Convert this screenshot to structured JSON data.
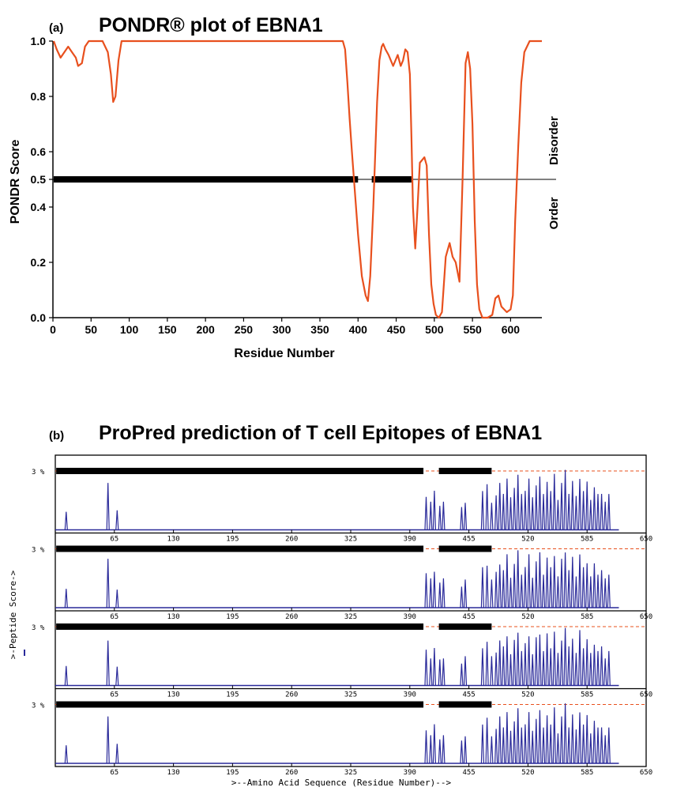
{
  "panel_a": {
    "letter": "(a)",
    "title": "PONDR® plot of EBNA1",
    "ylabel": "PONDR Score",
    "xlabel": "Residue Number",
    "disorder_label": "Disorder",
    "order_label": "Order"
  },
  "panel_b": {
    "letter": "(b)",
    "title": "ProPred prediction of T cell Epitopes of EBNA1",
    "ylabel": ">-Peptide Score->",
    "xlabel": ">--Amino Acid Sequence (Residue Number)-->",
    "threshold_label": "3 %"
  },
  "colors": {
    "pondr_line": "#e8501e",
    "propred_line": "#2a2a9a",
    "threshold": "#e8501e",
    "bar": "#000000"
  },
  "chart_data": [
    {
      "type": "line",
      "title": "PONDR® plot of EBNA1",
      "xlabel": "Residue Number",
      "ylabel": "PONDR Score",
      "xlim": [
        0,
        641
      ],
      "ylim": [
        0,
        1.0
      ],
      "xticks": [
        0,
        50,
        100,
        150,
        200,
        250,
        300,
        350,
        400,
        450,
        500,
        550,
        600
      ],
      "yticks": [
        0.0,
        0.2,
        0.4,
        0.5,
        0.6,
        0.8,
        1.0
      ],
      "threshold": 0.5,
      "ordered_segments": [
        [
          1,
          400
        ],
        [
          418,
          470
        ]
      ],
      "series": [
        {
          "x": [
            1,
            5,
            10,
            15,
            20,
            25,
            30,
            33,
            38,
            42,
            47,
            52,
            58,
            65,
            72,
            76,
            79,
            82,
            86,
            90,
            95,
            100,
            150,
            200,
            250,
            300,
            350,
            375,
            380,
            383,
            386,
            389,
            392,
            396,
            400,
            405,
            410,
            413,
            416,
            420,
            425,
            428,
            431,
            433,
            436,
            440,
            443,
            446,
            449,
            452,
            456,
            459,
            462,
            465,
            468,
            470,
            472,
            475,
            478,
            481,
            484,
            487,
            490,
            493,
            496,
            499,
            502,
            506,
            510,
            515,
            520,
            524,
            528,
            533,
            537,
            541,
            544,
            547,
            550,
            553,
            556,
            559,
            563,
            570,
            576,
            580,
            584,
            588,
            595,
            600,
            603,
            606,
            610,
            614,
            618,
            625,
            641
          ],
          "y": [
            1.0,
            0.97,
            0.94,
            0.96,
            0.98,
            0.96,
            0.94,
            0.91,
            0.92,
            0.98,
            1.0,
            1.0,
            1.0,
            1.0,
            0.96,
            0.88,
            0.78,
            0.8,
            0.93,
            1.0,
            1.0,
            1.0,
            1.0,
            1.0,
            1.0,
            1.0,
            1.0,
            1.0,
            1.0,
            0.97,
            0.85,
            0.72,
            0.6,
            0.45,
            0.3,
            0.15,
            0.08,
            0.06,
            0.15,
            0.4,
            0.78,
            0.93,
            0.98,
            0.99,
            0.97,
            0.95,
            0.93,
            0.91,
            0.93,
            0.95,
            0.91,
            0.93,
            0.97,
            0.96,
            0.88,
            0.65,
            0.4,
            0.25,
            0.4,
            0.56,
            0.57,
            0.58,
            0.55,
            0.3,
            0.12,
            0.05,
            0.01,
            0.0,
            0.02,
            0.22,
            0.27,
            0.22,
            0.2,
            0.13,
            0.5,
            0.92,
            0.96,
            0.9,
            0.7,
            0.35,
            0.12,
            0.03,
            0.0,
            0.0,
            0.01,
            0.07,
            0.08,
            0.04,
            0.02,
            0.03,
            0.08,
            0.35,
            0.62,
            0.85,
            0.96,
            1.0,
            1.0
          ]
        }
      ]
    },
    {
      "type": "line",
      "title": "ProPred prediction of T cell Epitopes of EBNA1",
      "xlabel": ">--Amino Acid Sequence (Residue Number)-->",
      "ylabel": ">-Peptide Score->",
      "xlim": [
        0,
        650
      ],
      "xticks": [
        65,
        130,
        195,
        260,
        325,
        390,
        455,
        520,
        585,
        650
      ],
      "threshold_label": "3 %",
      "ordered_segments": [
        [
          1,
          405
        ],
        [
          422,
          480
        ]
      ],
      "panels": 4,
      "peaks": [
        [
          12,
          0.3
        ],
        [
          58,
          0.75
        ],
        [
          68,
          0.3
        ],
        [
          408,
          0.55
        ],
        [
          413,
          0.45
        ],
        [
          417,
          0.6
        ],
        [
          423,
          0.4
        ],
        [
          427,
          0.45
        ],
        [
          447,
          0.35
        ],
        [
          451,
          0.45
        ],
        [
          470,
          0.62
        ],
        [
          475,
          0.7
        ],
        [
          480,
          0.45
        ],
        [
          485,
          0.55
        ],
        [
          489,
          0.72
        ],
        [
          493,
          0.6
        ],
        [
          497,
          0.82
        ],
        [
          501,
          0.5
        ],
        [
          505,
          0.7
        ],
        [
          509,
          0.88
        ],
        [
          513,
          0.55
        ],
        [
          517,
          0.65
        ],
        [
          521,
          0.82
        ],
        [
          525,
          0.5
        ],
        [
          529,
          0.74
        ],
        [
          533,
          0.85
        ],
        [
          537,
          0.55
        ],
        [
          541,
          0.8
        ],
        [
          545,
          0.62
        ],
        [
          549,
          0.86
        ],
        [
          553,
          0.5
        ],
        [
          557,
          0.75
        ],
        [
          561,
          0.92
        ],
        [
          565,
          0.6
        ],
        [
          569,
          0.78
        ],
        [
          573,
          0.52
        ],
        [
          577,
          0.85
        ],
        [
          581,
          0.62
        ],
        [
          585,
          0.74
        ],
        [
          589,
          0.5
        ],
        [
          593,
          0.68
        ],
        [
          597,
          0.55
        ],
        [
          601,
          0.6
        ],
        [
          605,
          0.45
        ],
        [
          609,
          0.55
        ]
      ]
    }
  ]
}
